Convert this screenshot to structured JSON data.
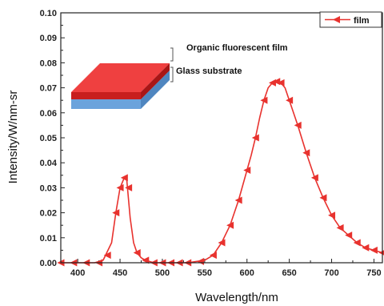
{
  "chart_data": {
    "type": "line",
    "xlabel": "Wavelength/nm",
    "ylabel": "Intensity/W/nm-sr",
    "xlim": [
      380,
      760
    ],
    "ylim": [
      0,
      0.1
    ],
    "xticks": [
      400,
      450,
      500,
      550,
      600,
      650,
      700,
      750
    ],
    "yticks": [
      0.0,
      0.01,
      0.02,
      0.03,
      0.04,
      0.05,
      0.06,
      0.07,
      0.08,
      0.09,
      0.1
    ],
    "xtick_labels": [
      "400",
      "450",
      "500",
      "550",
      "600",
      "650",
      "700",
      "750"
    ],
    "ytick_labels": [
      "0.00",
      "0.01",
      "0.02",
      "0.03",
      "0.04",
      "0.05",
      "0.06",
      "0.07",
      "0.08",
      "0.09",
      "0.10"
    ],
    "legend_position": "top-right",
    "series": [
      {
        "name": "film",
        "color": "#e8322e",
        "marker": "triangle-left",
        "x": [
          380,
          390,
          400,
          410,
          420,
          430,
          440,
          445,
          450,
          455,
          458,
          462,
          466,
          470,
          475,
          480,
          490,
          500,
          510,
          520,
          530,
          540,
          550,
          560,
          570,
          580,
          590,
          600,
          605,
          610,
          615,
          620,
          625,
          630,
          635,
          640,
          645,
          650,
          660,
          670,
          680,
          690,
          700,
          710,
          720,
          730,
          740,
          750,
          760
        ],
        "y": [
          0,
          0,
          0,
          0,
          0,
          0.001,
          0.008,
          0.02,
          0.03,
          0.034,
          0.033,
          0.018,
          0.008,
          0.004,
          0.002,
          0.001,
          0,
          0,
          0,
          0,
          0,
          0.0005,
          0.001,
          0.003,
          0.008,
          0.015,
          0.025,
          0.037,
          0.043,
          0.05,
          0.058,
          0.065,
          0.07,
          0.072,
          0.0725,
          0.072,
          0.07,
          0.065,
          0.055,
          0.044,
          0.034,
          0.026,
          0.019,
          0.014,
          0.011,
          0.008,
          0.006,
          0.005,
          0.004
        ],
        "marker_x": [
          380,
          395,
          410,
          425,
          435,
          445,
          450,
          455,
          460,
          470,
          480,
          490,
          500,
          510,
          520,
          530,
          545,
          560,
          570,
          580,
          590,
          600,
          610,
          620,
          630,
          635,
          640,
          650,
          660,
          670,
          680,
          690,
          700,
          710,
          720,
          730,
          740,
          750,
          760
        ],
        "marker_y": [
          0,
          0,
          0,
          0,
          0.003,
          0.02,
          0.03,
          0.034,
          0.03,
          0.004,
          0.001,
          0,
          0,
          0,
          0,
          0,
          0.0005,
          0.003,
          0.008,
          0.015,
          0.025,
          0.037,
          0.05,
          0.065,
          0.072,
          0.0725,
          0.072,
          0.065,
          0.055,
          0.044,
          0.034,
          0.026,
          0.019,
          0.014,
          0.011,
          0.008,
          0.006,
          0.005,
          0.004
        ]
      }
    ],
    "inset": {
      "top_label": "Organic fluorescent film",
      "bottom_label": "Glass substrate",
      "film_color": "#e8322e",
      "substrate_color": "#7ab0e0"
    }
  }
}
